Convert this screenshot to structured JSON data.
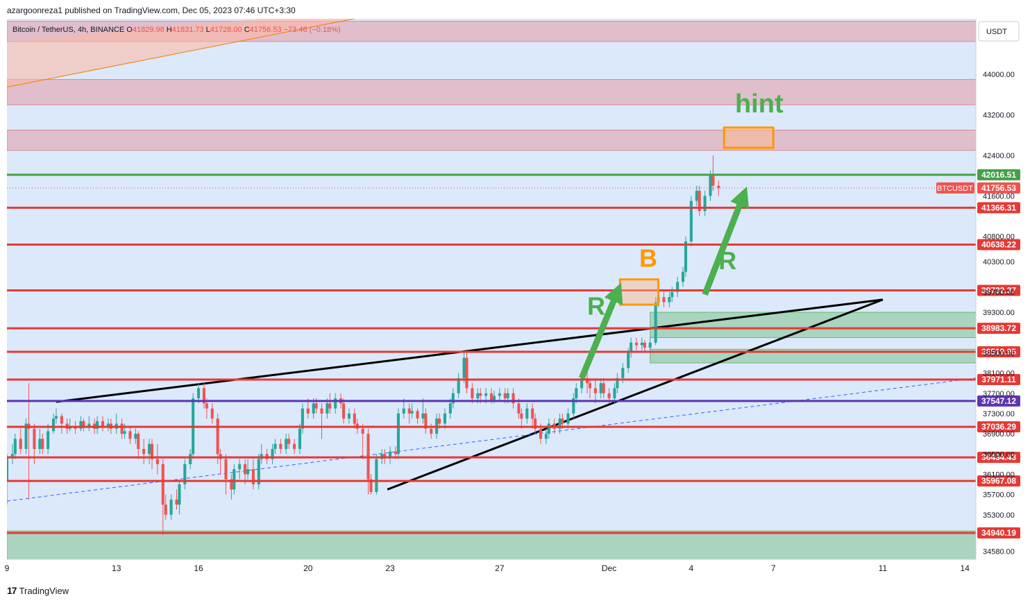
{
  "header": {
    "published": "azargoonreza1 published on TradingView.com, Dec 05, 2023 07:46 UTC+3:30",
    "symbol": "Bitcoin / TetherUS, 4h, BINANCE",
    "o_label": "O",
    "o_value": "41829.98",
    "h_label": "H",
    "h_value": "41831.73",
    "l_label": "L",
    "l_value": "41728.00",
    "c_label": "C",
    "c_value": "41756.53",
    "change": "−73.46 (−0.18%)"
  },
  "footer": {
    "brand": "TradingView",
    "logo": "17"
  },
  "colors": {
    "bg": "#dbe9fb",
    "up": "#26a69a",
    "down": "#ef5350",
    "level_red": "#e53935",
    "level_green": "#43a047",
    "level_purple": "#5e35b1",
    "zone_red": "rgba(232,120,130,0.38)",
    "zone_green": "rgba(76,175,80,0.35)",
    "orange": "#ff9800",
    "arrow_green": "#4caf50"
  },
  "chart_data": {
    "type": "candlestick",
    "title": "Bitcoin / TetherUS, 4h, BINANCE",
    "quote_currency": "USDT",
    "ylim": [
      34420,
      45100
    ],
    "y_ticks": [
      34580,
      35300,
      35700,
      36100,
      36500,
      36900,
      37300,
      37700,
      38100,
      38500,
      39300,
      39700,
      40300,
      40800,
      41600,
      42400,
      43200,
      44000
    ],
    "x_axis": {
      "labels": [
        "9",
        "13",
        "16",
        "20",
        "23",
        "27",
        "Dec",
        "4",
        "7",
        "11",
        "14"
      ],
      "days": [
        9,
        13,
        16,
        20,
        23,
        27,
        31,
        34,
        37,
        41,
        44
      ],
      "range": [
        9,
        44.4
      ]
    },
    "price_levels": [
      {
        "value": 42016.51,
        "label": "42016.51",
        "color": "#43a047"
      },
      {
        "value": 41366.31,
        "label": "41366.31",
        "color": "#e53935"
      },
      {
        "value": 40638.22,
        "label": "40638.22",
        "color": "#e53935"
      },
      {
        "value": 39732.37,
        "label": "39732.37",
        "color": "#e53935"
      },
      {
        "value": 38983.72,
        "label": "38983.72",
        "color": "#e53935"
      },
      {
        "value": 38519.95,
        "label": "38519.95",
        "color": "#e53935"
      },
      {
        "value": 37971.11,
        "label": "37971.11",
        "color": "#e53935"
      },
      {
        "value": 37547.12,
        "label": "37547.12",
        "color": "#5e35b1"
      },
      {
        "value": 37036.29,
        "label": "37036.29",
        "color": "#e53935"
      },
      {
        "value": 36434.43,
        "label": "36434.43",
        "color": "#e53935"
      },
      {
        "value": 35967.08,
        "label": "35967.08",
        "color": "#e53935"
      },
      {
        "value": 34940.19,
        "label": "34940.19",
        "color": "#e53935"
      }
    ],
    "current_price": {
      "value": 41756.53,
      "label": "41756.53",
      "ticker": "BTCUSDT"
    },
    "zones": [
      {
        "low": 44650,
        "high": 45050,
        "kind": "red"
      },
      {
        "low": 43400,
        "high": 43900,
        "kind": "red"
      },
      {
        "low": 42500,
        "high": 42900,
        "kind": "red"
      },
      {
        "low": 38800,
        "high": 39300,
        "kind": "green"
      },
      {
        "low": 38300,
        "high": 38570,
        "kind": "green"
      },
      {
        "low": 34420,
        "high": 34980,
        "kind": "green"
      }
    ],
    "trendlines": [
      {
        "x": [
          10.8,
          41.0
        ],
        "y": [
          37530,
          39550
        ],
        "style": "solid-black"
      },
      {
        "x": [
          22.9,
          41.0
        ],
        "y": [
          35800,
          39550
        ],
        "style": "solid-black"
      },
      {
        "x": [
          9.0,
          44.4
        ],
        "y": [
          35570,
          38000
        ],
        "style": "dashed-blue"
      },
      {
        "x": [
          9.0,
          24.5
        ],
        "y": [
          43750,
          45400
        ],
        "style": "orange"
      }
    ],
    "annotations": [
      {
        "text": "hint",
        "x": 35.6,
        "y": 43250,
        "color": "#4caf50"
      },
      {
        "text": "B",
        "x": 32.1,
        "y": 40200,
        "color": "#ff9800"
      },
      {
        "text": "R",
        "x": 30.2,
        "y": 39250,
        "color": "#4caf50"
      },
      {
        "text": "R",
        "x": 35.0,
        "y": 40150,
        "color": "#4caf50"
      }
    ],
    "boxes": [
      {
        "x": [
          35.2,
          37.0
        ],
        "y": [
          42550,
          42950
        ],
        "color": "#ff9800",
        "name": "hint-box"
      },
      {
        "x": [
          31.4,
          32.8
        ],
        "y": [
          39450,
          39950
        ],
        "color": "#ff9800",
        "name": "b-box"
      }
    ],
    "arrows": [
      {
        "from": [
          30.0,
          38000
        ],
        "to": [
          31.3,
          39700
        ]
      },
      {
        "from": [
          34.5,
          39650
        ],
        "to": [
          35.9,
          41600
        ]
      }
    ],
    "candles": [
      [
        9.0,
        35960,
        36450,
        35500,
        36500
      ],
      [
        9.2,
        36450,
        36500,
        36300,
        36700
      ],
      [
        9.3,
        36500,
        36800,
        36400,
        36900
      ],
      [
        9.5,
        36800,
        36600,
        36500,
        37000
      ],
      [
        9.7,
        36600,
        37100,
        36500,
        37200
      ],
      [
        9.8,
        37100,
        37000,
        35600,
        37900
      ],
      [
        10.0,
        37000,
        36600,
        36300,
        37100
      ],
      [
        10.2,
        36600,
        36800,
        36500,
        37000
      ],
      [
        10.3,
        36800,
        36600,
        36500,
        36900
      ],
      [
        10.5,
        36600,
        36950,
        36500,
        37100
      ],
      [
        10.7,
        36950,
        37200,
        36900,
        37300
      ],
      [
        10.8,
        37200,
        37250,
        37100,
        37400
      ],
      [
        11.0,
        37250,
        37100,
        36900,
        37300
      ],
      [
        11.2,
        37100,
        37000,
        36900,
        37200
      ],
      [
        11.3,
        37000,
        37050,
        36950,
        37200
      ],
      [
        11.5,
        37050,
        37000,
        36900,
        37150
      ],
      [
        11.7,
        37000,
        37150,
        36950,
        37250
      ],
      [
        11.8,
        37150,
        37050,
        36950,
        37200
      ],
      [
        12.0,
        37050,
        37100,
        36950,
        37250
      ],
      [
        12.2,
        37100,
        37000,
        36900,
        37200
      ],
      [
        12.3,
        37000,
        37150,
        36900,
        37250
      ],
      [
        12.5,
        37150,
        37050,
        36950,
        37250
      ],
      [
        12.7,
        37050,
        37100,
        36950,
        37200
      ],
      [
        12.8,
        37100,
        37000,
        36900,
        37200
      ],
      [
        13.0,
        37000,
        37100,
        36900,
        37300
      ],
      [
        13.2,
        37100,
        36900,
        36800,
        37200
      ],
      [
        13.3,
        36900,
        36950,
        36800,
        37100
      ],
      [
        13.5,
        36950,
        36800,
        36700,
        37050
      ],
      [
        13.7,
        36800,
        36900,
        36700,
        37000
      ],
      [
        13.8,
        36900,
        36600,
        36400,
        36950
      ],
      [
        14.0,
        36600,
        36500,
        36300,
        36800
      ],
      [
        14.2,
        36500,
        36700,
        36300,
        36800
      ],
      [
        14.3,
        36700,
        36400,
        36200,
        36800
      ],
      [
        14.5,
        36400,
        36300,
        36100,
        36700
      ],
      [
        14.7,
        36300,
        35500,
        34900,
        36400
      ],
      [
        14.8,
        35500,
        35300,
        35200,
        35700
      ],
      [
        15.0,
        35300,
        35600,
        35200,
        35700
      ],
      [
        15.2,
        35600,
        35500,
        35400,
        35800
      ],
      [
        15.3,
        35500,
        35900,
        35300,
        36000
      ],
      [
        15.5,
        35900,
        36300,
        35800,
        36400
      ],
      [
        15.7,
        36300,
        36500,
        36200,
        36600
      ],
      [
        15.8,
        36500,
        37600,
        36400,
        37700
      ],
      [
        16.0,
        37600,
        37800,
        37500,
        37900
      ],
      [
        16.2,
        37800,
        37500,
        37400,
        37900
      ],
      [
        16.3,
        37500,
        37400,
        37200,
        37600
      ],
      [
        16.5,
        37400,
        37200,
        37100,
        37500
      ],
      [
        16.7,
        37200,
        36500,
        36300,
        37300
      ],
      [
        16.8,
        36500,
        36400,
        36100,
        36600
      ],
      [
        17.0,
        36400,
        36000,
        35700,
        36500
      ],
      [
        17.2,
        36000,
        35800,
        35600,
        36100
      ],
      [
        17.3,
        35800,
        36200,
        35700,
        36300
      ],
      [
        17.5,
        36200,
        36300,
        36000,
        36400
      ],
      [
        17.7,
        36300,
        36100,
        35900,
        36400
      ],
      [
        17.8,
        36100,
        36200,
        36000,
        36400
      ],
      [
        18.0,
        36200,
        35900,
        35800,
        36400
      ],
      [
        18.2,
        35900,
        36400,
        35800,
        36500
      ],
      [
        18.3,
        36400,
        36500,
        36300,
        36700
      ],
      [
        18.5,
        36500,
        36400,
        36300,
        36600
      ],
      [
        18.7,
        36400,
        36600,
        36300,
        36700
      ],
      [
        18.8,
        36600,
        36700,
        36500,
        36800
      ],
      [
        19.0,
        36700,
        36600,
        36500,
        36800
      ],
      [
        19.2,
        36600,
        36800,
        36500,
        36900
      ],
      [
        19.3,
        36800,
        36700,
        36600,
        36900
      ],
      [
        19.5,
        36700,
        36600,
        36500,
        36800
      ],
      [
        19.7,
        36600,
        37000,
        36500,
        37100
      ],
      [
        19.8,
        37000,
        37400,
        36900,
        37500
      ],
      [
        20.0,
        37400,
        37300,
        37200,
        37600
      ],
      [
        20.2,
        37300,
        37500,
        37200,
        37600
      ],
      [
        20.3,
        37500,
        37400,
        37300,
        37600
      ],
      [
        20.5,
        37400,
        37300,
        36800,
        37500
      ],
      [
        20.7,
        37300,
        37500,
        37200,
        37600
      ],
      [
        20.8,
        37500,
        37400,
        37300,
        37700
      ],
      [
        21.0,
        37400,
        37600,
        37300,
        37700
      ],
      [
        21.2,
        37600,
        37500,
        37400,
        37700
      ],
      [
        21.3,
        37500,
        37200,
        37100,
        37600
      ],
      [
        21.5,
        37200,
        37300,
        37100,
        37400
      ],
      [
        21.7,
        37300,
        37100,
        37000,
        37400
      ],
      [
        21.8,
        37100,
        37000,
        36900,
        37200
      ],
      [
        22.0,
        37000,
        36900,
        36400,
        37100
      ],
      [
        22.2,
        36900,
        36000,
        35700,
        37000
      ],
      [
        22.3,
        36000,
        35750,
        35700,
        36100
      ],
      [
        22.5,
        35750,
        36400,
        35700,
        36500
      ],
      [
        22.7,
        36400,
        36500,
        36300,
        36600
      ],
      [
        22.8,
        36500,
        36450,
        36300,
        36600
      ],
      [
        23.0,
        36450,
        36550,
        36300,
        36650
      ],
      [
        23.2,
        36550,
        36500,
        36400,
        36650
      ],
      [
        23.3,
        36500,
        37300,
        36400,
        37400
      ],
      [
        23.5,
        37300,
        37400,
        37200,
        37600
      ],
      [
        23.7,
        37400,
        37300,
        37100,
        37500
      ],
      [
        23.8,
        37300,
        37350,
        37200,
        37500
      ],
      [
        24.0,
        37350,
        37200,
        37100,
        37400
      ],
      [
        24.2,
        37200,
        37300,
        37100,
        37600
      ],
      [
        24.3,
        37300,
        37000,
        36900,
        37400
      ],
      [
        24.5,
        37000,
        36900,
        36800,
        37100
      ],
      [
        24.7,
        36900,
        37200,
        36800,
        37300
      ],
      [
        24.8,
        37200,
        37100,
        37000,
        37300
      ],
      [
        25.0,
        37100,
        37300,
        37000,
        37400
      ],
      [
        25.2,
        37300,
        37500,
        37200,
        37600
      ],
      [
        25.3,
        37500,
        37700,
        37400,
        37800
      ],
      [
        25.5,
        37700,
        38000,
        37600,
        38100
      ],
      [
        25.7,
        38000,
        38400,
        37900,
        38500
      ],
      [
        25.8,
        38400,
        37800,
        37700,
        38500
      ],
      [
        26.0,
        37800,
        37600,
        37500,
        37900
      ],
      [
        26.2,
        37600,
        37700,
        37500,
        37800
      ],
      [
        26.3,
        37700,
        37650,
        37500,
        37800
      ],
      [
        26.5,
        37650,
        37700,
        37500,
        37800
      ],
      [
        26.7,
        37700,
        37550,
        37500,
        37800
      ],
      [
        26.8,
        37550,
        37650,
        37500,
        37750
      ],
      [
        27.0,
        37650,
        37700,
        37550,
        37800
      ],
      [
        27.2,
        37700,
        37600,
        37500,
        37800
      ],
      [
        27.3,
        37600,
        37700,
        37500,
        37800
      ],
      [
        27.5,
        37700,
        37500,
        37400,
        37800
      ],
      [
        27.7,
        37500,
        37300,
        37200,
        37600
      ],
      [
        27.8,
        37300,
        37200,
        37000,
        37400
      ],
      [
        28.0,
        37200,
        37400,
        37100,
        37500
      ],
      [
        28.2,
        37400,
        37200,
        37000,
        37500
      ],
      [
        28.3,
        37200,
        37000,
        36900,
        37300
      ],
      [
        28.5,
        37000,
        36800,
        36700,
        37100
      ],
      [
        28.7,
        36800,
        36900,
        36700,
        37000
      ],
      [
        28.8,
        36900,
        37100,
        36800,
        37200
      ],
      [
        29.0,
        37100,
        37000,
        36900,
        37200
      ],
      [
        29.2,
        37000,
        37200,
        36900,
        37300
      ],
      [
        29.3,
        37200,
        37100,
        37000,
        37300
      ],
      [
        29.5,
        37100,
        37300,
        37000,
        37400
      ],
      [
        29.7,
        37300,
        37600,
        37200,
        37700
      ],
      [
        29.8,
        37600,
        37800,
        37500,
        37900
      ],
      [
        30.0,
        37800,
        38000,
        37700,
        38100
      ],
      [
        30.2,
        38000,
        37900,
        37700,
        38200
      ],
      [
        30.3,
        37900,
        37800,
        37600,
        38000
      ],
      [
        30.5,
        37800,
        37700,
        37500,
        38000
      ],
      [
        30.7,
        37700,
        37900,
        37600,
        38000
      ],
      [
        30.8,
        37900,
        37700,
        37600,
        38000
      ],
      [
        31.0,
        37700,
        37600,
        37500,
        37800
      ],
      [
        31.2,
        37600,
        37800,
        37500,
        37900
      ],
      [
        31.3,
        37800,
        38000,
        37700,
        38100
      ],
      [
        31.5,
        38000,
        38200,
        37900,
        38300
      ],
      [
        31.7,
        38200,
        38500,
        38100,
        38600
      ],
      [
        31.8,
        38500,
        38700,
        38400,
        38800
      ],
      [
        32.0,
        38700,
        38650,
        38550,
        38800
      ],
      [
        32.2,
        38650,
        38700,
        38550,
        38800
      ],
      [
        32.3,
        38700,
        38600,
        38500,
        38750
      ],
      [
        32.5,
        38600,
        38700,
        38550,
        38800
      ],
      [
        32.7,
        38700,
        39500,
        38650,
        39600
      ],
      [
        32.8,
        39500,
        39600,
        39400,
        39700
      ],
      [
        33.0,
        39600,
        39500,
        39400,
        39700
      ],
      [
        33.2,
        39500,
        39600,
        39400,
        39700
      ],
      [
        33.3,
        39600,
        39700,
        39500,
        39800
      ],
      [
        33.5,
        39700,
        39900,
        39600,
        40000
      ],
      [
        33.7,
        39900,
        40100,
        39800,
        40200
      ],
      [
        33.8,
        40100,
        40700,
        40000,
        40800
      ],
      [
        34.0,
        40700,
        41500,
        40600,
        41600
      ],
      [
        34.2,
        41500,
        41700,
        41400,
        41800
      ],
      [
        34.3,
        41700,
        41300,
        41200,
        41800
      ],
      [
        34.5,
        41300,
        41600,
        41200,
        41700
      ],
      [
        34.7,
        41600,
        42000,
        41500,
        42100
      ],
      [
        34.8,
        42000,
        41800,
        41700,
        42400
      ],
      [
        35.0,
        41800,
        41750,
        41600,
        41900
      ]
    ]
  }
}
